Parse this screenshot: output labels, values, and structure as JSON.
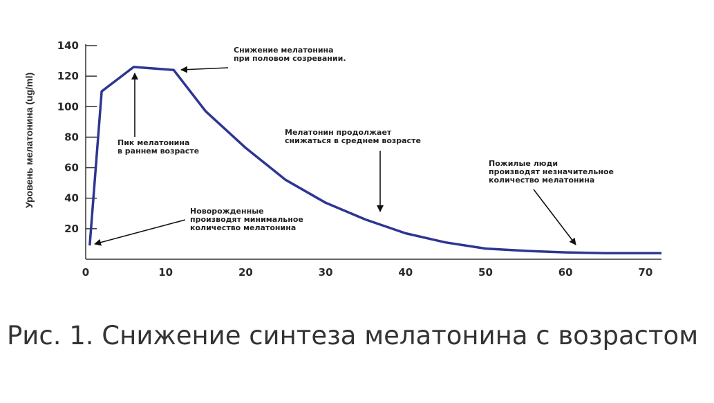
{
  "chart_data": {
    "type": "line",
    "ylabel": "Уровень мелатонина (ug/ml)",
    "xlabel": "",
    "xlim": [
      0,
      72
    ],
    "ylim": [
      0,
      140
    ],
    "xticks": [
      0,
      10,
      20,
      30,
      40,
      50,
      60,
      70
    ],
    "yticks": [
      20,
      40,
      60,
      80,
      100,
      120,
      140
    ],
    "grid": false,
    "legend": "none",
    "line_color": "#2e3592",
    "series": [
      {
        "x": [
          0.5,
          2,
          6,
          11,
          15,
          20,
          25,
          30,
          35,
          40,
          45,
          50,
          55,
          60,
          65,
          70,
          72
        ],
        "values": [
          9,
          110,
          126,
          124,
          97,
          73,
          52,
          37,
          26,
          17,
          11,
          7,
          5.5,
          4.5,
          4,
          4,
          4
        ]
      }
    ],
    "annotations": [
      {
        "id": "puberty",
        "lines": [
          "Снижение мелатонина",
          "при половом созревании."
        ],
        "x": 12,
        "y": 124
      },
      {
        "id": "peak",
        "lines": [
          "Пик мелатонина",
          "в раннем возрасте"
        ],
        "x": 6.5,
        "y": 126
      },
      {
        "id": "middle",
        "lines": [
          "Мелатонин продолжает",
          "снижаться в среднем возрасте"
        ],
        "x": 36.5,
        "y": 30
      },
      {
        "id": "elderly",
        "lines": [
          "Пожилые люди",
          "производят незначительное",
          "количество мелатонина"
        ],
        "x": 63,
        "y": 5
      },
      {
        "id": "newborn",
        "lines": [
          "Новорожденные",
          "производят минимальное",
          "количество мелатонина"
        ],
        "x": 1,
        "y": 8
      }
    ]
  },
  "caption": "Рис. 1. Снижение синтеза мелатонина с возрастом"
}
